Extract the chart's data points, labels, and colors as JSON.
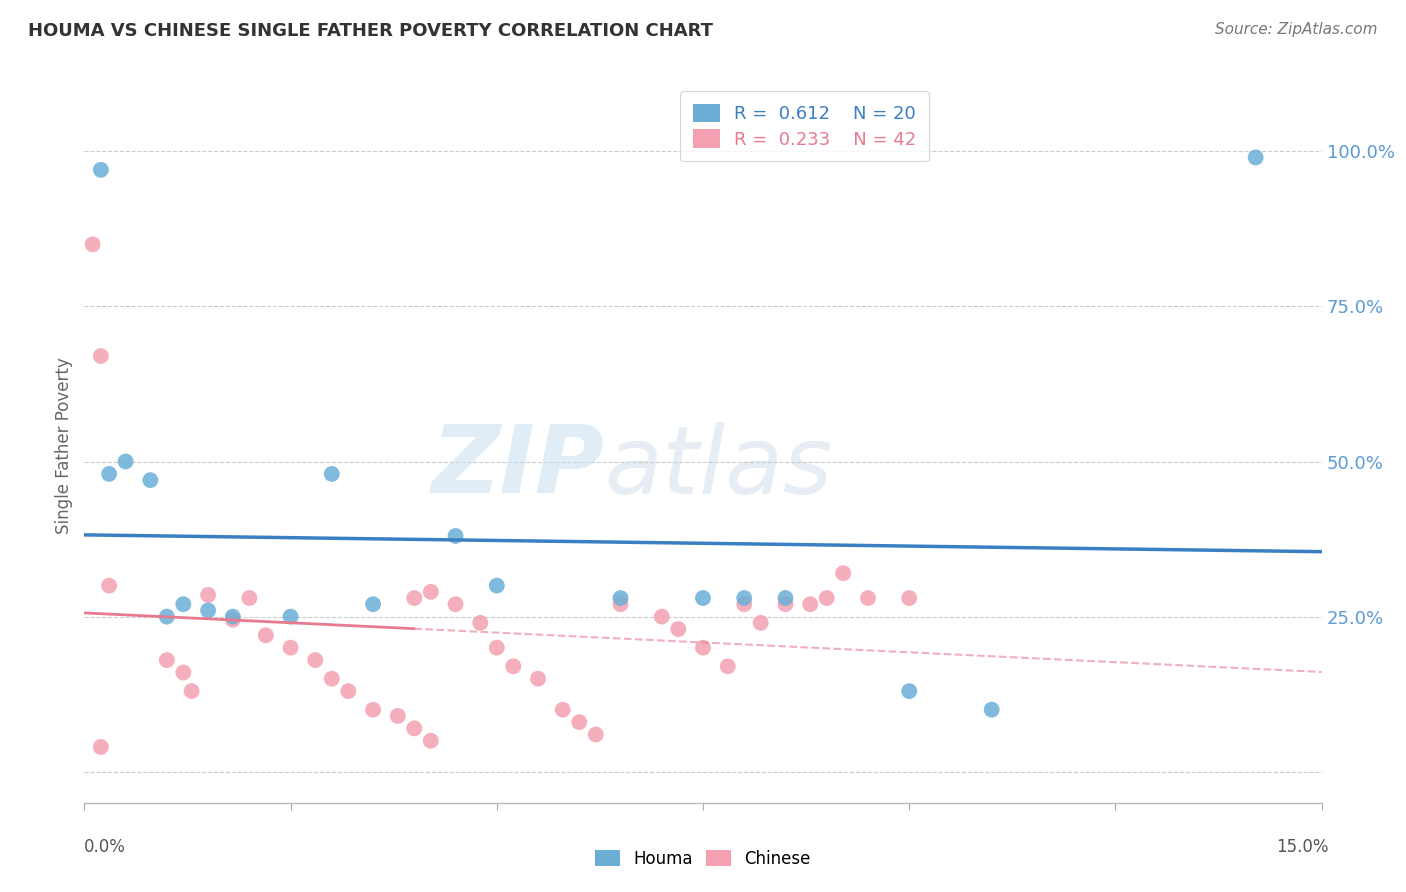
{
  "title": "HOUMA VS CHINESE SINGLE FATHER POVERTY CORRELATION CHART",
  "source": "Source: ZipAtlas.com",
  "ylabel": "Single Father Poverty",
  "yticks": [
    0.0,
    25.0,
    50.0,
    75.0,
    100.0
  ],
  "ytick_labels": [
    "",
    "25.0%",
    "50.0%",
    "75.0%",
    "100.0%"
  ],
  "xmin": 0.0,
  "xmax": 15.0,
  "ymin": -5.0,
  "ymax": 110.0,
  "houma_R": 0.612,
  "houma_N": 20,
  "chinese_R": 0.233,
  "chinese_N": 42,
  "houma_color": "#6aaed6",
  "chinese_color": "#f4a0b0",
  "houma_line_color": "#3a7fc1",
  "chinese_line_color": "#e87a90",
  "chinese_dash_color": "#e8a0b0",
  "houma_points": [
    [
      0.2,
      97.0
    ],
    [
      0.3,
      48.0
    ],
    [
      0.5,
      50.0
    ],
    [
      0.8,
      47.0
    ],
    [
      1.0,
      25.0
    ],
    [
      1.2,
      27.0
    ],
    [
      1.5,
      26.0
    ],
    [
      1.8,
      25.0
    ],
    [
      2.5,
      25.0
    ],
    [
      3.0,
      48.0
    ],
    [
      3.5,
      27.0
    ],
    [
      4.5,
      38.0
    ],
    [
      5.0,
      30.0
    ],
    [
      6.5,
      28.0
    ],
    [
      7.5,
      28.0
    ],
    [
      8.0,
      28.0
    ],
    [
      8.5,
      28.0
    ],
    [
      10.0,
      13.0
    ],
    [
      14.2,
      99.0
    ],
    [
      11.0,
      10.0
    ]
  ],
  "chinese_points": [
    [
      0.1,
      85.0
    ],
    [
      0.2,
      67.0
    ],
    [
      0.3,
      30.0
    ],
    [
      1.0,
      18.0
    ],
    [
      1.2,
      16.0
    ],
    [
      1.3,
      13.0
    ],
    [
      1.5,
      28.5
    ],
    [
      1.8,
      24.5
    ],
    [
      2.0,
      28.0
    ],
    [
      2.2,
      22.0
    ],
    [
      2.5,
      20.0
    ],
    [
      2.8,
      18.0
    ],
    [
      3.0,
      15.0
    ],
    [
      3.2,
      13.0
    ],
    [
      3.5,
      10.0
    ],
    [
      3.8,
      9.0
    ],
    [
      4.0,
      7.0
    ],
    [
      4.2,
      5.0
    ],
    [
      4.5,
      27.0
    ],
    [
      4.8,
      24.0
    ],
    [
      5.0,
      20.0
    ],
    [
      5.2,
      17.0
    ],
    [
      5.5,
      15.0
    ],
    [
      5.8,
      10.0
    ],
    [
      6.0,
      8.0
    ],
    [
      6.2,
      6.0
    ],
    [
      6.5,
      27.0
    ],
    [
      7.0,
      25.0
    ],
    [
      7.2,
      23.0
    ],
    [
      7.5,
      20.0
    ],
    [
      7.8,
      17.0
    ],
    [
      8.0,
      27.0
    ],
    [
      8.2,
      24.0
    ],
    [
      8.5,
      27.0
    ],
    [
      8.8,
      27.0
    ],
    [
      9.0,
      28.0
    ],
    [
      9.2,
      32.0
    ],
    [
      9.5,
      28.0
    ],
    [
      10.0,
      28.0
    ],
    [
      4.0,
      28.0
    ],
    [
      4.2,
      29.0
    ],
    [
      0.2,
      4.0
    ]
  ],
  "watermark_zip": "ZIP",
  "watermark_atlas": "atlas",
  "background_color": "#ffffff",
  "grid_color": "#cccccc"
}
